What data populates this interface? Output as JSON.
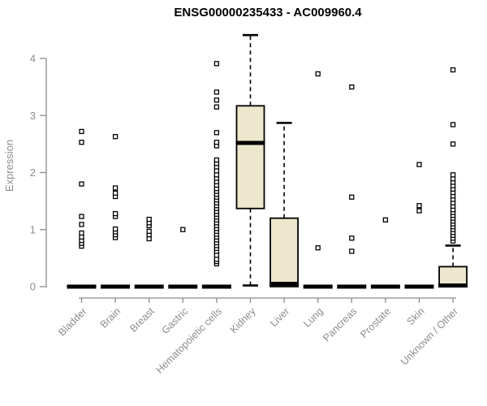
{
  "chart_data": {
    "type": "boxplot",
    "title": "ENSG00000235433 - AC009960.4",
    "ylabel": "Expression",
    "xlabel": "",
    "yticks": [
      0,
      1,
      2,
      3,
      4
    ],
    "ylim": [
      0,
      4.45
    ],
    "grid": false,
    "categories": [
      "Bladder",
      "Brain",
      "Breast",
      "Gastric",
      "Hematopoietic cells",
      "Kidney",
      "Liver",
      "Lung",
      "Pancreas",
      "Prostate",
      "Skin",
      "Unknown / Other"
    ],
    "series": [
      {
        "label": "Bladder",
        "q1": 0,
        "median": 0,
        "q3": 0,
        "whisker_low": 0,
        "whisker_high": 0,
        "outliers": [
          0.71,
          0.76,
          0.81,
          0.87,
          0.94,
          1.09,
          1.23,
          1.8,
          2.53,
          2.72
        ]
      },
      {
        "label": "Brain",
        "q1": 0,
        "median": 0,
        "q3": 0,
        "whisker_low": 0,
        "whisker_high": 0,
        "outliers": [
          0.86,
          0.91,
          0.96,
          1.01,
          1.23,
          1.28,
          1.58,
          1.64,
          1.73,
          2.63
        ]
      },
      {
        "label": "Breast",
        "q1": 0,
        "median": 0,
        "q3": 0,
        "whisker_low": 0,
        "whisker_high": 0,
        "outliers": [
          0.84,
          0.91,
          0.97,
          1.07,
          1.12,
          1.18
        ]
      },
      {
        "label": "Gastric",
        "q1": 0,
        "median": 0,
        "q3": 0,
        "whisker_low": 0,
        "whisker_high": 0,
        "outliers": [
          1.0
        ]
      },
      {
        "label": "Hematopoietic cells",
        "q1": 0,
        "median": 0,
        "q3": 0,
        "whisker_low": 0,
        "whisker_high": 0,
        "outliers": [
          0.4,
          0.44,
          0.48,
          0.55,
          0.62,
          0.67,
          0.72,
          0.77,
          0.82,
          0.87,
          0.92,
          0.97,
          1.02,
          1.07,
          1.12,
          1.17,
          1.22,
          1.27,
          1.32,
          1.37,
          1.42,
          1.47,
          1.52,
          1.57,
          1.62,
          1.67,
          1.72,
          1.78,
          1.84,
          1.9,
          1.96,
          2.03,
          2.1,
          2.16,
          2.22,
          2.47,
          2.53,
          2.7,
          3.15,
          3.27,
          3.41,
          3.91
        ]
      },
      {
        "label": "Kidney",
        "q1": 1.37,
        "median": 2.52,
        "q3": 3.17,
        "whisker_low": 0.02,
        "whisker_high": 4.41,
        "outliers": []
      },
      {
        "label": "Liver",
        "q1": 0,
        "median": 0.05,
        "q3": 1.2,
        "whisker_low": 0,
        "whisker_high": 2.87,
        "outliers": []
      },
      {
        "label": "Lung",
        "q1": 0,
        "median": 0,
        "q3": 0,
        "whisker_low": 0,
        "whisker_high": 0,
        "outliers": [
          0.68,
          3.73
        ]
      },
      {
        "label": "Pancreas",
        "q1": 0,
        "median": 0,
        "q3": 0,
        "whisker_low": 0,
        "whisker_high": 0,
        "outliers": [
          0.62,
          0.85,
          1.57,
          3.5
        ]
      },
      {
        "label": "Prostate",
        "q1": 0,
        "median": 0,
        "q3": 0,
        "whisker_low": 0,
        "whisker_high": 0,
        "outliers": [
          1.17
        ]
      },
      {
        "label": "Skin",
        "q1": 0,
        "median": 0,
        "q3": 0,
        "whisker_low": 0,
        "whisker_high": 0,
        "outliers": [
          1.33,
          1.42,
          2.14
        ]
      },
      {
        "label": "Unknown / Other",
        "q1": 0,
        "median": 0.02,
        "q3": 0.35,
        "whisker_low": 0,
        "whisker_high": 0.72,
        "outliers": [
          0.8,
          0.85,
          0.9,
          0.95,
          1.0,
          1.05,
          1.1,
          1.15,
          1.2,
          1.25,
          1.3,
          1.35,
          1.41,
          1.47,
          1.53,
          1.59,
          1.65,
          1.71,
          1.77,
          1.83,
          1.89,
          1.96,
          2.5,
          2.84,
          3.8
        ]
      }
    ],
    "colors": {
      "box_fill": "#EDE7CD",
      "box_border": "#000000",
      "median": "#000000",
      "outlier": "#000000",
      "axis": "#8C8C8C",
      "tick_text": "#8C8C8C",
      "title_text": "#000000"
    }
  }
}
